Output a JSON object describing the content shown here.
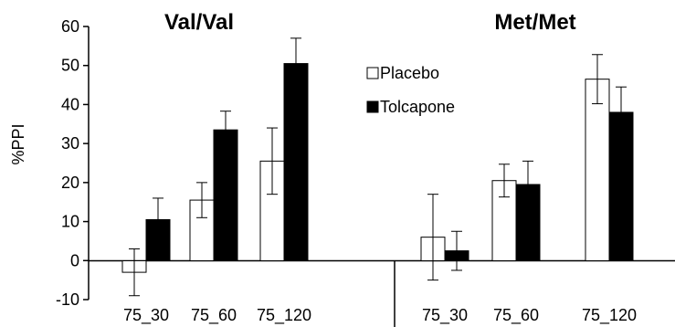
{
  "chart_data": {
    "type": "bar",
    "ylabel": "%PPI",
    "xlabel": "",
    "ylim": [
      -10,
      60
    ],
    "yticks": [
      -10,
      0,
      10,
      20,
      30,
      40,
      50,
      60
    ],
    "grid": false,
    "legend_position": "top-center",
    "legend": {
      "entries": [
        {
          "name": "Placebo",
          "color": "#ffffff"
        },
        {
          "name": "Tolcapone",
          "color": "#000000"
        }
      ]
    },
    "panels": [
      {
        "title": "Val/Val",
        "categories": [
          "75_30",
          "75_60",
          "75_120"
        ],
        "series": [
          {
            "name": "Placebo",
            "color": "#ffffff",
            "values": [
              -3,
              15.5,
              25.5
            ],
            "error": [
              6,
              4.5,
              8.5
            ]
          },
          {
            "name": "Tolcapone",
            "color": "#000000",
            "values": [
              10.5,
              33.5,
              50.5
            ],
            "error": [
              5.5,
              4.8,
              6.5
            ]
          }
        ]
      },
      {
        "title": "Met/Met",
        "categories": [
          "75_30",
          "75_60",
          "75_120"
        ],
        "series": [
          {
            "name": "Placebo",
            "color": "#ffffff",
            "values": [
              6,
              20.5,
              46.5
            ],
            "error": [
              11,
              4.2,
              6.3
            ]
          },
          {
            "name": "Tolcapone",
            "color": "#000000",
            "values": [
              2.5,
              19.5,
              38
            ],
            "error": [
              5,
              6,
              6.5
            ]
          }
        ]
      }
    ]
  }
}
